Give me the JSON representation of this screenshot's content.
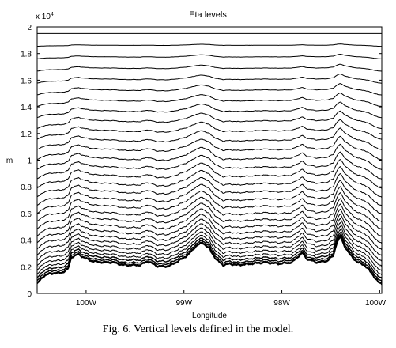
{
  "chart_data": {
    "type": "line",
    "title": "Eta levels",
    "xlabel": "Longitude",
    "ylabel": "m",
    "y_multiplier": "x 10",
    "y_multiplier_exp": "4",
    "x_ticks": [
      "100W",
      "99W",
      "98W",
      "100W"
    ],
    "y_ticks": [
      "0",
      "0.2",
      "0.4",
      "0.6",
      "0.8",
      "1",
      "1.2",
      "1.4",
      "1.6",
      "1.8",
      "2"
    ],
    "ylim": [
      0,
      2
    ],
    "xlim": [
      0,
      1
    ],
    "grid": false,
    "line_color": "#000000",
    "level_count": 32,
    "top_level": 1.95,
    "surface_profile": {
      "x": [
        0.0,
        0.01,
        0.02,
        0.03,
        0.05,
        0.07,
        0.09,
        0.1,
        0.12,
        0.14,
        0.16,
        0.19,
        0.22,
        0.25,
        0.28,
        0.3,
        0.32,
        0.35,
        0.38,
        0.41,
        0.44,
        0.46,
        0.48,
        0.5,
        0.52,
        0.54,
        0.56,
        0.58,
        0.62,
        0.66,
        0.7,
        0.74,
        0.76,
        0.77,
        0.78,
        0.81,
        0.84,
        0.86,
        0.87,
        0.88,
        0.89,
        0.91,
        0.93,
        0.95,
        0.97,
        0.99,
        1.0
      ],
      "y": [
        700,
        1000,
        1300,
        1400,
        1500,
        1500,
        1800,
        2700,
        2900,
        2600,
        2400,
        2300,
        2300,
        2100,
        2100,
        2100,
        2400,
        2000,
        2000,
        2400,
        2900,
        3500,
        3800,
        3300,
        2500,
        2100,
        2200,
        2100,
        2200,
        2300,
        2200,
        2300,
        2800,
        3000,
        2600,
        2300,
        2400,
        2800,
        3800,
        4200,
        3600,
        2800,
        2300,
        2100,
        1500,
        800,
        700
      ]
    }
  },
  "caption": "Fig. 6. Vertical levels defined in the model."
}
